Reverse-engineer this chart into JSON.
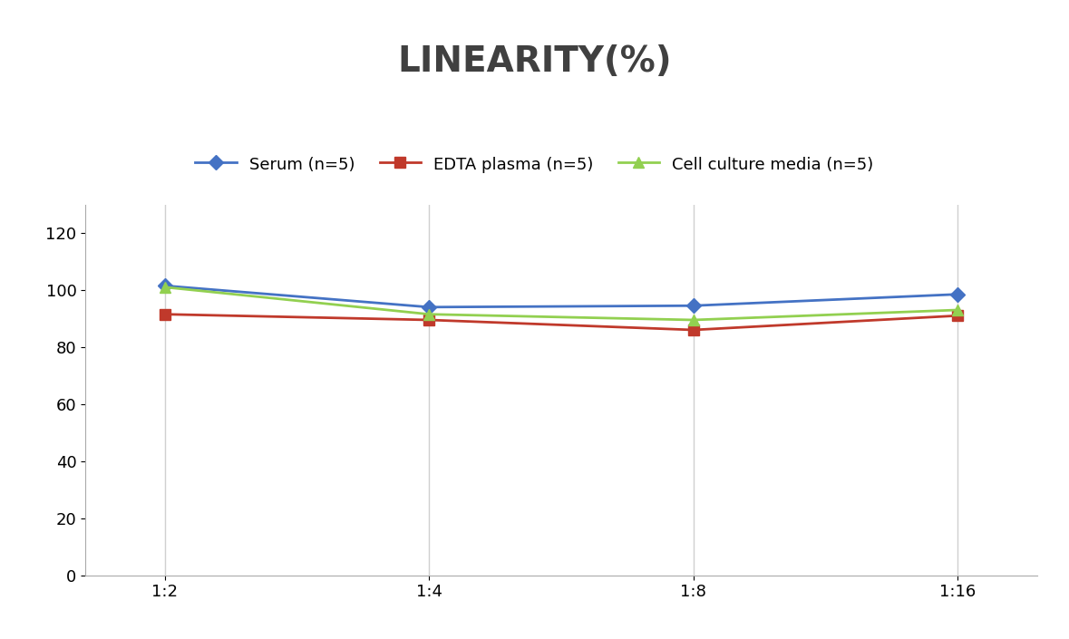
{
  "title": "LINEARITY(%)",
  "title_fontsize": 28,
  "title_fontweight": "bold",
  "title_color": "#404040",
  "x_labels": [
    "1:2",
    "1:4",
    "1:8",
    "1:16"
  ],
  "x_positions": [
    0,
    1,
    2,
    3
  ],
  "series": [
    {
      "label": "Serum (n=5)",
      "values": [
        101.5,
        94.0,
        94.5,
        98.5
      ],
      "color": "#4472C4",
      "marker": "D",
      "markersize": 8,
      "linewidth": 2
    },
    {
      "label": "EDTA plasma (n=5)",
      "values": [
        91.5,
        89.5,
        86.0,
        91.0
      ],
      "color": "#C0392B",
      "marker": "s",
      "markersize": 8,
      "linewidth": 2
    },
    {
      "label": "Cell culture media (n=5)",
      "values": [
        101.0,
        91.5,
        89.5,
        93.0
      ],
      "color": "#92D050",
      "marker": "^",
      "markersize": 8,
      "linewidth": 2
    }
  ],
  "ylim": [
    0,
    130
  ],
  "yticks": [
    0,
    20,
    40,
    60,
    80,
    100,
    120
  ],
  "grid_color": "#D0D0D0",
  "background_color": "#FFFFFF",
  "legend_fontsize": 13,
  "tick_fontsize": 13
}
